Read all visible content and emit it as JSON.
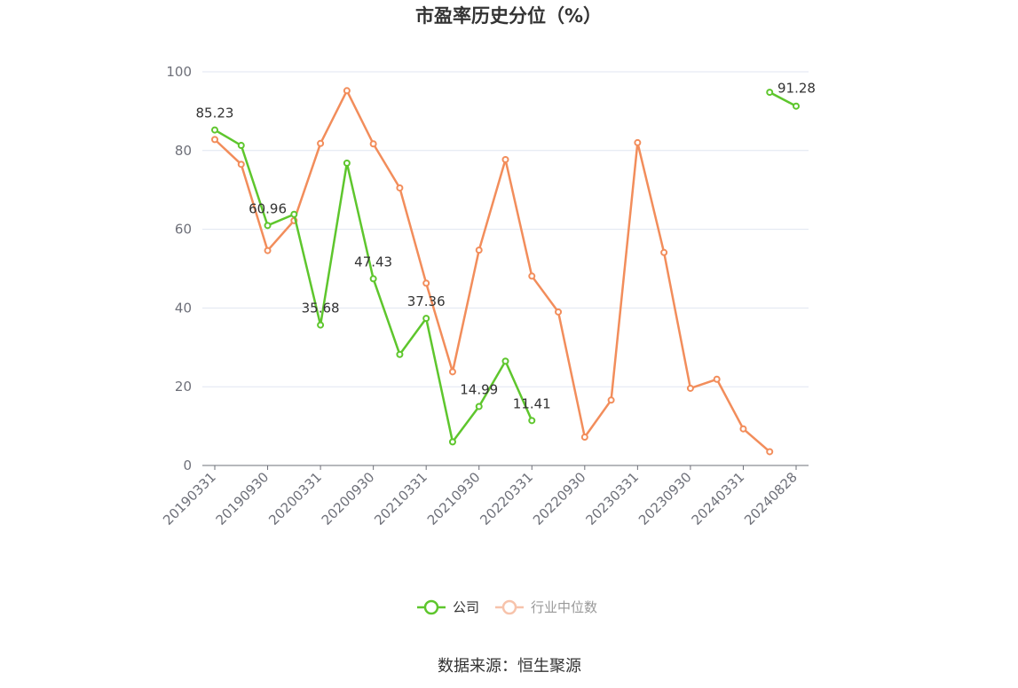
{
  "chart_data": {
    "type": "line",
    "title": "市盈率历史分位（%）",
    "xlabel": "",
    "ylabel": "",
    "ylim": [
      0,
      100
    ],
    "yticks": [
      0,
      20,
      40,
      60,
      80,
      100
    ],
    "grid": true,
    "legend_position": "bottom",
    "x": [
      "20190331",
      "20190630",
      "20190930",
      "20191231",
      "20200331",
      "20200630",
      "20200930",
      "20201231",
      "20210331",
      "20210630",
      "20210930",
      "20211231",
      "20220331",
      "20220630",
      "20220930",
      "20221231",
      "20230331",
      "20230630",
      "20230930",
      "20231231",
      "20240331",
      "20240630",
      "20240828"
    ],
    "x_tick_labels": [
      "20190331",
      "20190930",
      "20200331",
      "20200930",
      "20210331",
      "20210930",
      "20220331",
      "20220930",
      "20230331",
      "20230930",
      "20240331",
      "20240828"
    ],
    "series": [
      {
        "name": "公司",
        "color": "#5ec62d",
        "values": [
          85.23,
          81.3,
          60.96,
          63.8,
          35.68,
          76.8,
          47.43,
          28.2,
          37.36,
          6.0,
          14.99,
          26.5,
          11.41,
          null,
          null,
          null,
          null,
          null,
          null,
          null,
          null,
          94.8,
          91.28
        ],
        "data_labels": {
          "0": "85.23",
          "2": "60.96",
          "4": "35.68",
          "6": "47.43",
          "8": "37.36",
          "10": "14.99",
          "12": "11.41",
          "22": "91.28"
        }
      },
      {
        "name": "行业中位数",
        "color": "#f28d5b",
        "values": [
          82.8,
          76.5,
          54.6,
          62.2,
          81.8,
          95.2,
          81.7,
          70.5,
          46.3,
          23.8,
          54.7,
          77.7,
          48.1,
          39.0,
          7.2,
          16.6,
          82.0,
          54.1,
          19.6,
          21.9,
          9.3,
          3.5,
          null
        ]
      }
    ]
  },
  "footer": {
    "source": "数据来源：恒生聚源"
  }
}
